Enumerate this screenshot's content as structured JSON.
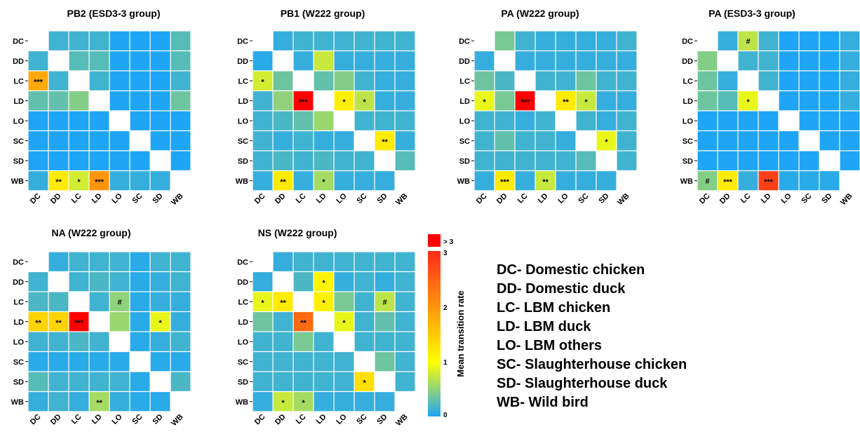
{
  "colors": {
    "low": "#1ea5f5",
    "mid": "#ffff00",
    "high": "#ff2a1a",
    "over": "#ff0000",
    "diag": "#ffffff"
  },
  "legend": {
    "over_label": "> 3",
    "ticks": [
      "3",
      "2",
      "1",
      "0"
    ],
    "title": "Mean transition rate"
  },
  "abbreviations": [
    "DC- Domestic chicken",
    "DD- Domestic duck",
    "LC- LBM chicken",
    "LD- LBM duck",
    "LO- LBM others",
    "SC- Slaughterhouse chicken",
    "SD- Slaughterhouse duck",
    "WB- Wild bird"
  ],
  "chart_data": [
    {
      "type": "heatmap",
      "title": "PB2 (ESD3-3 group)",
      "rows": [
        "DC",
        "DD",
        "LC",
        "LD",
        "LO",
        "SC",
        "SD",
        "WB"
      ],
      "cols": [
        "DC",
        "DD",
        "LC",
        "LD",
        "LO",
        "SC",
        "SD",
        "WB"
      ],
      "values": [
        [
          null,
          0.15,
          0.15,
          0.15,
          0,
          0,
          0,
          0.25
        ],
        [
          0.15,
          null,
          0.25,
          0.25,
          0,
          0,
          0,
          0.25
        ],
        [
          1.8,
          0.15,
          null,
          0.15,
          0,
          0,
          0,
          0.15
        ],
        [
          0.3,
          0.3,
          0.45,
          null,
          0,
          0,
          0,
          0.35
        ],
        [
          0,
          0,
          0,
          0,
          null,
          0,
          0,
          0
        ],
        [
          0,
          0,
          0,
          0,
          0,
          null,
          0,
          0
        ],
        [
          0,
          0,
          0,
          0,
          0,
          0,
          null,
          0
        ],
        [
          0.1,
          1.2,
          0.8,
          2.0,
          0.1,
          0.1,
          0.1,
          null
        ]
      ],
      "annotations": [
        [
          null,
          "",
          "",
          "",
          "",
          "",
          "",
          ""
        ],
        [
          "",
          null,
          "",
          "",
          "",
          "",
          "",
          ""
        ],
        [
          "***",
          "",
          null,
          "",
          "",
          "",
          "",
          ""
        ],
        [
          "",
          "",
          "",
          null,
          "",
          "",
          "",
          ""
        ],
        [
          "",
          "",
          "",
          "",
          null,
          "",
          "",
          ""
        ],
        [
          "",
          "",
          "",
          "",
          "",
          null,
          "",
          ""
        ],
        [
          "",
          "",
          "",
          "",
          "",
          "",
          null,
          ""
        ],
        [
          "",
          "**",
          "*",
          "***",
          "",
          "",
          "",
          null
        ]
      ]
    },
    {
      "type": "heatmap",
      "title": "PB1 (W222 group)",
      "rows": [
        "DC",
        "DD",
        "LC",
        "LD",
        "LO",
        "SC",
        "SD",
        "WB"
      ],
      "cols": [
        "DC",
        "DD",
        "LC",
        "LD",
        "LO",
        "SC",
        "SD",
        "WB"
      ],
      "values": [
        [
          null,
          0.1,
          0.15,
          0.15,
          0.15,
          0.15,
          0.15,
          0.15
        ],
        [
          0.05,
          null,
          0.1,
          0.75,
          0.1,
          0.1,
          0.1,
          0.1
        ],
        [
          0.8,
          0.35,
          null,
          0.3,
          0.45,
          0.15,
          0.1,
          0.1
        ],
        [
          0.15,
          0.5,
          3.5,
          null,
          1.15,
          0.7,
          0.1,
          0.1
        ],
        [
          0.15,
          0.2,
          0.3,
          0.55,
          null,
          0.15,
          0.15,
          0.15
        ],
        [
          0.15,
          0.1,
          0.15,
          0.1,
          0.1,
          null,
          1.2,
          0.1
        ],
        [
          0.15,
          0.2,
          0.15,
          0.2,
          0.15,
          0.15,
          null,
          0.25
        ],
        [
          0.1,
          1.2,
          0.1,
          0.6,
          0.1,
          0.1,
          0.1,
          null
        ]
      ],
      "annotations": [
        [
          null,
          "",
          "",
          "",
          "",
          "",
          "",
          ""
        ],
        [
          "",
          null,
          "",
          "",
          "",
          "",
          "",
          ""
        ],
        [
          "*",
          "",
          null,
          "",
          "",
          "",
          "",
          ""
        ],
        [
          "",
          "",
          "***",
          null,
          "*",
          "*",
          "",
          ""
        ],
        [
          "",
          "",
          "",
          "",
          null,
          "",
          "",
          ""
        ],
        [
          "",
          "",
          "",
          "",
          "",
          null,
          "**",
          ""
        ],
        [
          "",
          "",
          "",
          "",
          "",
          "",
          null,
          ""
        ],
        [
          "",
          "**",
          "",
          "*",
          "",
          "",
          "",
          null
        ]
      ]
    },
    {
      "type": "heatmap",
      "title": "PA (W222 group)",
      "rows": [
        "DC",
        "DD",
        "LC",
        "LD",
        "LO",
        "SC",
        "SD",
        "WB"
      ],
      "cols": [
        "DC",
        "DD",
        "LC",
        "LD",
        "LO",
        "SC",
        "SD",
        "WB"
      ],
      "values": [
        [
          null,
          0.4,
          0.15,
          0.1,
          0.1,
          0.1,
          0.1,
          0.15
        ],
        [
          0.1,
          null,
          0.1,
          0.1,
          0.1,
          0.1,
          0.1,
          0.1
        ],
        [
          0.35,
          0.2,
          null,
          0.15,
          0.15,
          0.35,
          0.15,
          0.15
        ],
        [
          0.9,
          0.4,
          3.5,
          null,
          1.2,
          0.75,
          0.1,
          0.1
        ],
        [
          0.15,
          0.15,
          0.1,
          0.15,
          null,
          0.15,
          0.1,
          0.15
        ],
        [
          0.15,
          0.3,
          0.15,
          0.15,
          0.1,
          null,
          0.9,
          0.15
        ],
        [
          0.15,
          0.15,
          0.15,
          0.15,
          0.15,
          0.25,
          null,
          0.15
        ],
        [
          0.1,
          1.2,
          0.1,
          0.75,
          0.1,
          0.1,
          0.1,
          null
        ]
      ],
      "annotations": [
        [
          null,
          "",
          "",
          "",
          "",
          "",
          "",
          ""
        ],
        [
          "",
          null,
          "",
          "",
          "",
          "",
          "",
          ""
        ],
        [
          "",
          "",
          null,
          "",
          "",
          "",
          "",
          ""
        ],
        [
          "*",
          "",
          "***",
          null,
          "**",
          "*",
          "",
          ""
        ],
        [
          "",
          "",
          "",
          "",
          null,
          "",
          "",
          ""
        ],
        [
          "",
          "",
          "",
          "",
          "",
          null,
          "*",
          ""
        ],
        [
          "",
          "",
          "",
          "",
          "",
          "",
          null,
          ""
        ],
        [
          "",
          "***",
          "",
          "**",
          "",
          "",
          "",
          null
        ]
      ]
    },
    {
      "type": "heatmap",
      "title": "PA (ESD3-3 group)",
      "rows": [
        "DC",
        "DD",
        "LC",
        "LD",
        "LO",
        "SC",
        "SD",
        "WB"
      ],
      "cols": [
        "DC",
        "DD",
        "LC",
        "LD",
        "LO",
        "SC",
        "SD",
        "WB"
      ],
      "values": [
        [
          null,
          0.1,
          0.7,
          0.15,
          0,
          0,
          0,
          0.1
        ],
        [
          0.45,
          null,
          0.15,
          0.15,
          0,
          0,
          0,
          0.1
        ],
        [
          0.35,
          0.1,
          null,
          0.15,
          0,
          0,
          0,
          0.1
        ],
        [
          0.35,
          0.25,
          0.9,
          null,
          0,
          0,
          0,
          0.1
        ],
        [
          0,
          0,
          0,
          0,
          null,
          0,
          0,
          0
        ],
        [
          0,
          0,
          0,
          0,
          0,
          null,
          0,
          0
        ],
        [
          0,
          0,
          0,
          0,
          0,
          0,
          null,
          0
        ],
        [
          0.45,
          1.2,
          0.1,
          2.8,
          0.05,
          0.05,
          0.05,
          null
        ]
      ],
      "annotations": [
        [
          null,
          "",
          "#",
          "",
          "",
          "",
          "",
          ""
        ],
        [
          "",
          null,
          "",
          "",
          "",
          "",
          "",
          ""
        ],
        [
          "",
          "",
          null,
          "",
          "",
          "",
          "",
          ""
        ],
        [
          "",
          "",
          "*",
          null,
          "",
          "",
          "",
          ""
        ],
        [
          "",
          "",
          "",
          "",
          null,
          "",
          "",
          ""
        ],
        [
          "",
          "",
          "",
          "",
          "",
          null,
          "",
          ""
        ],
        [
          "",
          "",
          "",
          "",
          "",
          "",
          null,
          ""
        ],
        [
          "#",
          "***",
          "",
          "***",
          "",
          "",
          "",
          null
        ]
      ]
    },
    {
      "type": "heatmap",
      "title": "NA (W222 group)",
      "rows": [
        "DC",
        "DD",
        "LC",
        "LD",
        "LO",
        "SC",
        "SD",
        "WB"
      ],
      "cols": [
        "DC",
        "DD",
        "LC",
        "LD",
        "LO",
        "SC",
        "SD",
        "WB"
      ],
      "values": [
        [
          null,
          0.1,
          0.15,
          0.15,
          0.15,
          0.05,
          0.15,
          0.15
        ],
        [
          0.15,
          null,
          0.15,
          0.2,
          0.15,
          0.05,
          0.1,
          0.15
        ],
        [
          0.2,
          0.2,
          null,
          0.15,
          0.5,
          0.05,
          0.1,
          0.1
        ],
        [
          1.4,
          1.4,
          3.5,
          null,
          0.55,
          0.05,
          0.9,
          0.1
        ],
        [
          0.15,
          0.15,
          0.2,
          0.15,
          null,
          0.05,
          0.1,
          0.15
        ],
        [
          0.05,
          0.05,
          0.05,
          0.05,
          0.05,
          null,
          0.05,
          0.05
        ],
        [
          0.25,
          0.15,
          0.15,
          0.15,
          0.15,
          0.05,
          null,
          0.2
        ],
        [
          0.1,
          0.15,
          0.1,
          0.6,
          0.1,
          0.05,
          0.05,
          null
        ]
      ],
      "annotations": [
        [
          null,
          "",
          "",
          "",
          "",
          "",
          "",
          ""
        ],
        [
          "",
          null,
          "",
          "",
          "",
          "",
          "",
          ""
        ],
        [
          "",
          "",
          null,
          "",
          "#",
          "",
          "",
          ""
        ],
        [
          "**",
          "**",
          "***",
          null,
          "",
          "",
          "*",
          ""
        ],
        [
          "",
          "",
          "",
          "",
          null,
          "",
          "",
          ""
        ],
        [
          "",
          "",
          "",
          "",
          "",
          null,
          "",
          ""
        ],
        [
          "",
          "",
          "",
          "",
          "",
          "",
          null,
          ""
        ],
        [
          "",
          "",
          "",
          "**",
          "",
          "",
          "",
          null
        ]
      ]
    },
    {
      "type": "heatmap",
      "title": "NS (W222 group)",
      "rows": [
        "DC",
        "DD",
        "LC",
        "LD",
        "LO",
        "SC",
        "SD",
        "WB"
      ],
      "cols": [
        "DC",
        "DD",
        "LC",
        "LD",
        "LO",
        "SC",
        "SD",
        "WB"
      ],
      "values": [
        [
          null,
          0.1,
          0.15,
          0.15,
          0.15,
          0.15,
          0.15,
          0.15
        ],
        [
          0.1,
          null,
          0.2,
          1.1,
          0.1,
          0.15,
          0.1,
          0.15
        ],
        [
          0.9,
          1.2,
          null,
          1.15,
          0.4,
          0.15,
          0.7,
          0.15
        ],
        [
          0.35,
          0.15,
          2.4,
          null,
          0.9,
          0.15,
          0.3,
          0.15
        ],
        [
          0.15,
          0.15,
          0.4,
          0.15,
          null,
          0.15,
          0.15,
          0.15
        ],
        [
          0.15,
          0.15,
          0.15,
          0.15,
          0.15,
          null,
          0.35,
          0.15
        ],
        [
          0.15,
          0.15,
          0.15,
          0.15,
          0.15,
          1.3,
          null,
          0.15
        ],
        [
          0.1,
          0.75,
          0.6,
          0.1,
          0.1,
          0.1,
          0.1,
          null
        ]
      ],
      "annotations": [
        [
          null,
          "",
          "",
          "",
          "",
          "",
          "",
          ""
        ],
        [
          "",
          null,
          "",
          "*",
          "",
          "",
          "",
          ""
        ],
        [
          "*",
          "**",
          null,
          "*",
          "",
          "",
          "#",
          ""
        ],
        [
          "",
          "",
          "**",
          null,
          "*",
          "",
          "",
          ""
        ],
        [
          "",
          "",
          "",
          "",
          null,
          "",
          "",
          ""
        ],
        [
          "",
          "",
          "",
          "",
          "",
          null,
          "",
          ""
        ],
        [
          "",
          "",
          "",
          "",
          "",
          "*",
          null,
          ""
        ],
        [
          "",
          "*",
          "*",
          "",
          "",
          "",
          "",
          null
        ]
      ]
    }
  ]
}
